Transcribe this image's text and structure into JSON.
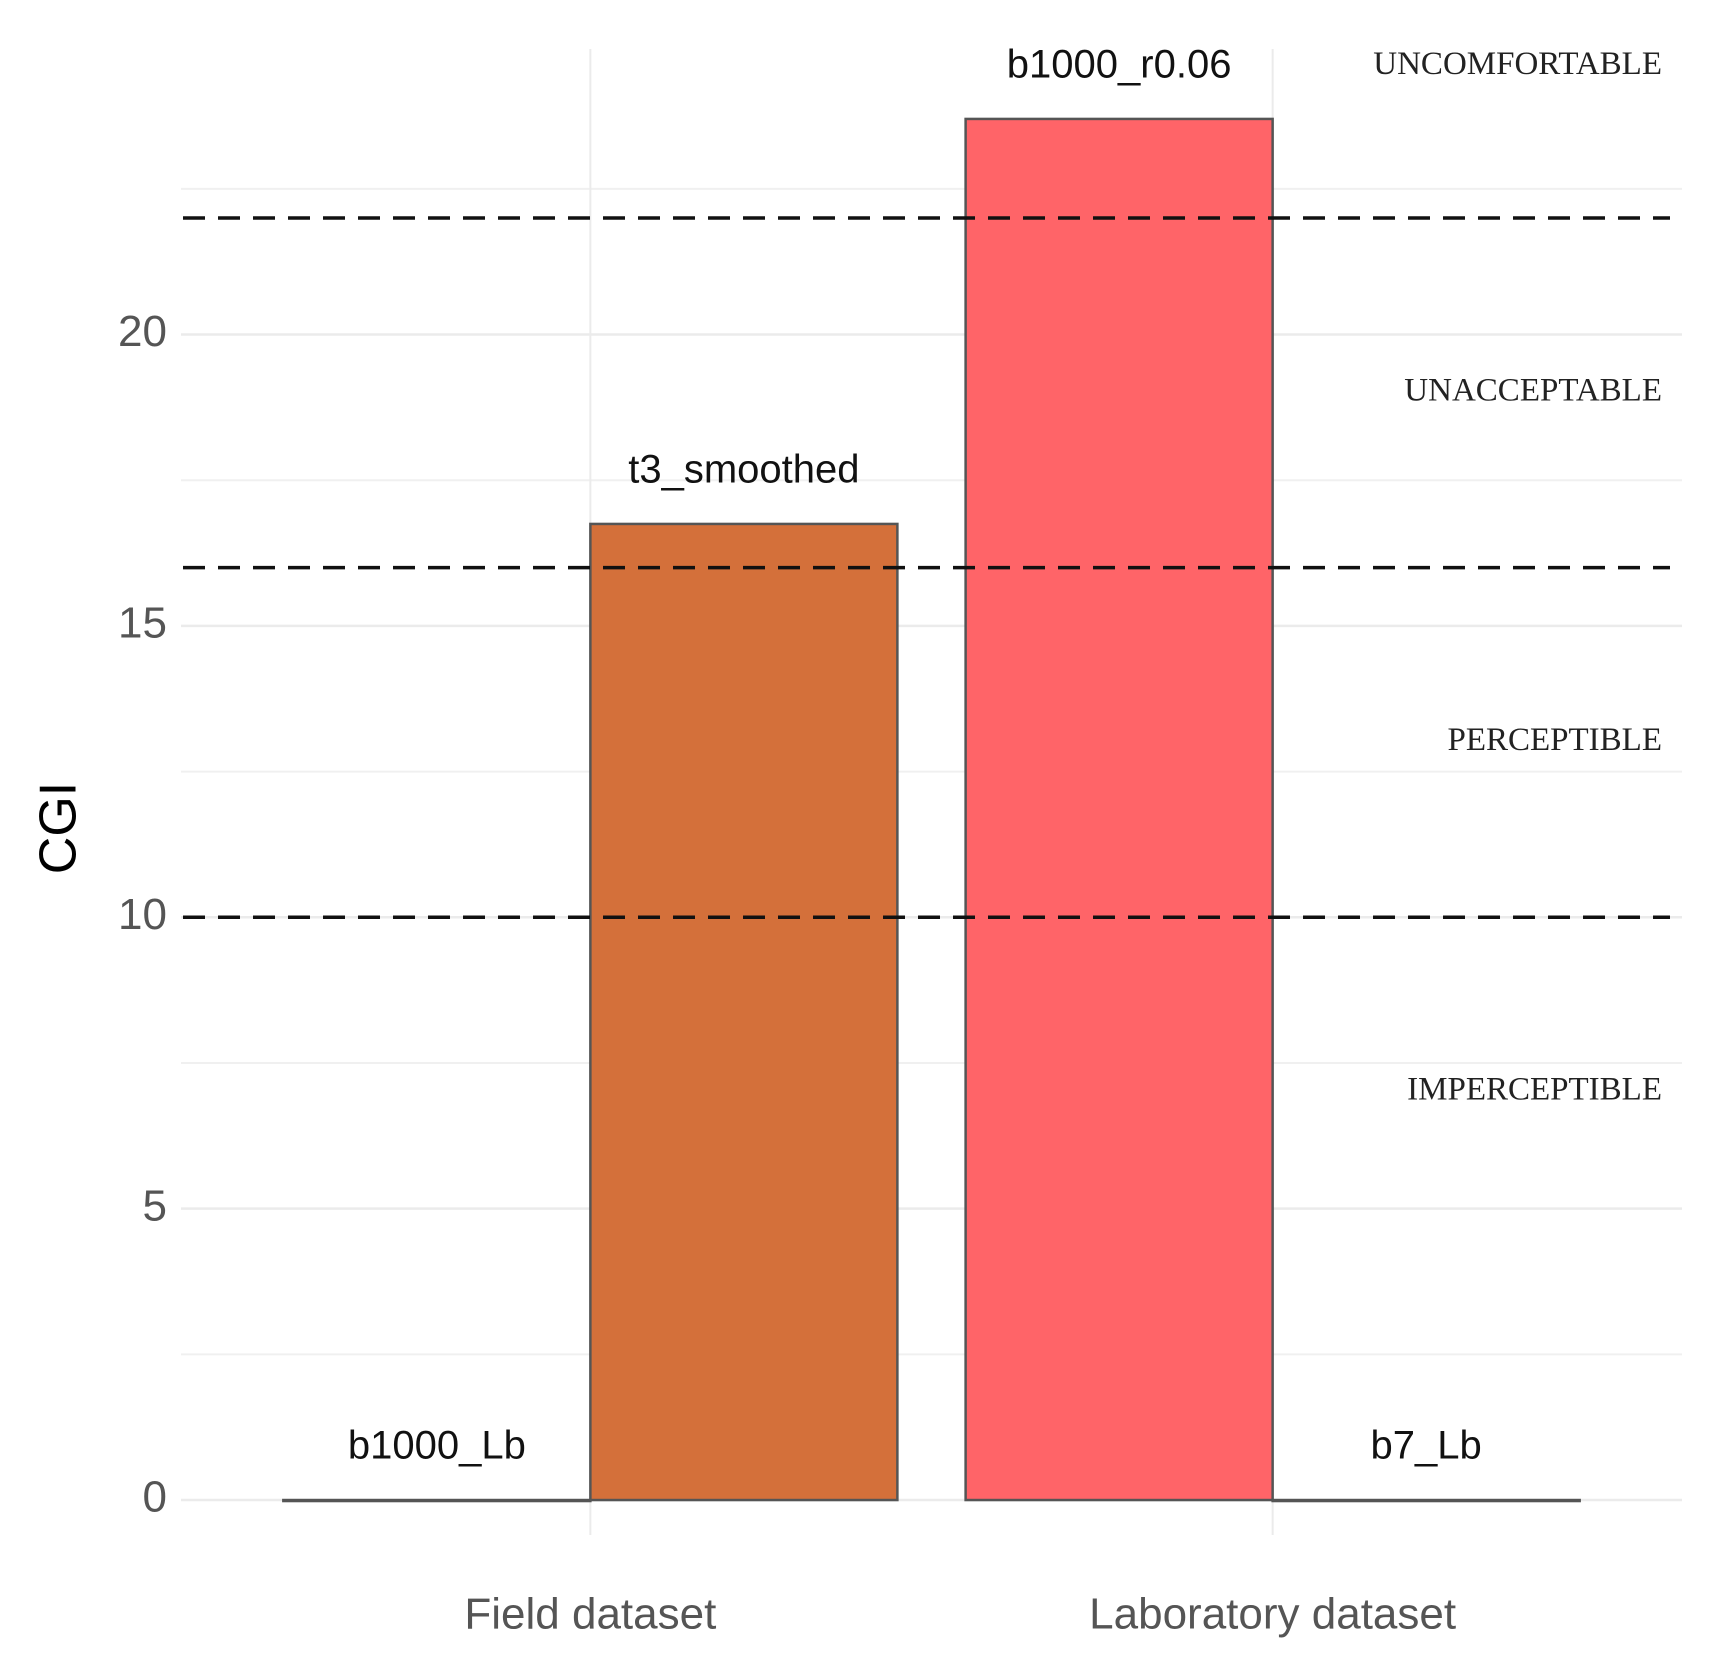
{
  "chart_data": {
    "type": "bar",
    "y_label": "CGI",
    "categories": [
      "Field dataset",
      "Laboratory dataset"
    ],
    "series": [
      {
        "values": [
          0,
          23.7
        ],
        "bar_labels": [
          "b1000_Lb",
          "b1000_r0.06"
        ],
        "colors": [
          "#8f8f8f",
          "#FF6468"
        ]
      },
      {
        "values": [
          16.75,
          0
        ],
        "bar_labels": [
          "t3_smoothed",
          "b7_Lb"
        ],
        "colors": [
          "#D4703A",
          "#8f8f8f"
        ]
      }
    ],
    "ylim": [
      -0.6,
      24.9
    ],
    "yticks": [
      0,
      5,
      10,
      15,
      20
    ],
    "minor_yticks": [
      2.5,
      7.5,
      12.5,
      17.5,
      22.5
    ],
    "grid": true,
    "thresholds": [
      10,
      16,
      22
    ],
    "zones": [
      {
        "label": "IMPERCEPTIBLE",
        "y": 7
      },
      {
        "label": "PERCEPTIBLE",
        "y": 13
      },
      {
        "label": "UNACCEPTABLE",
        "y": 19
      },
      {
        "label": "UNCOMFORTABLE",
        "y": 24.6
      }
    ]
  }
}
